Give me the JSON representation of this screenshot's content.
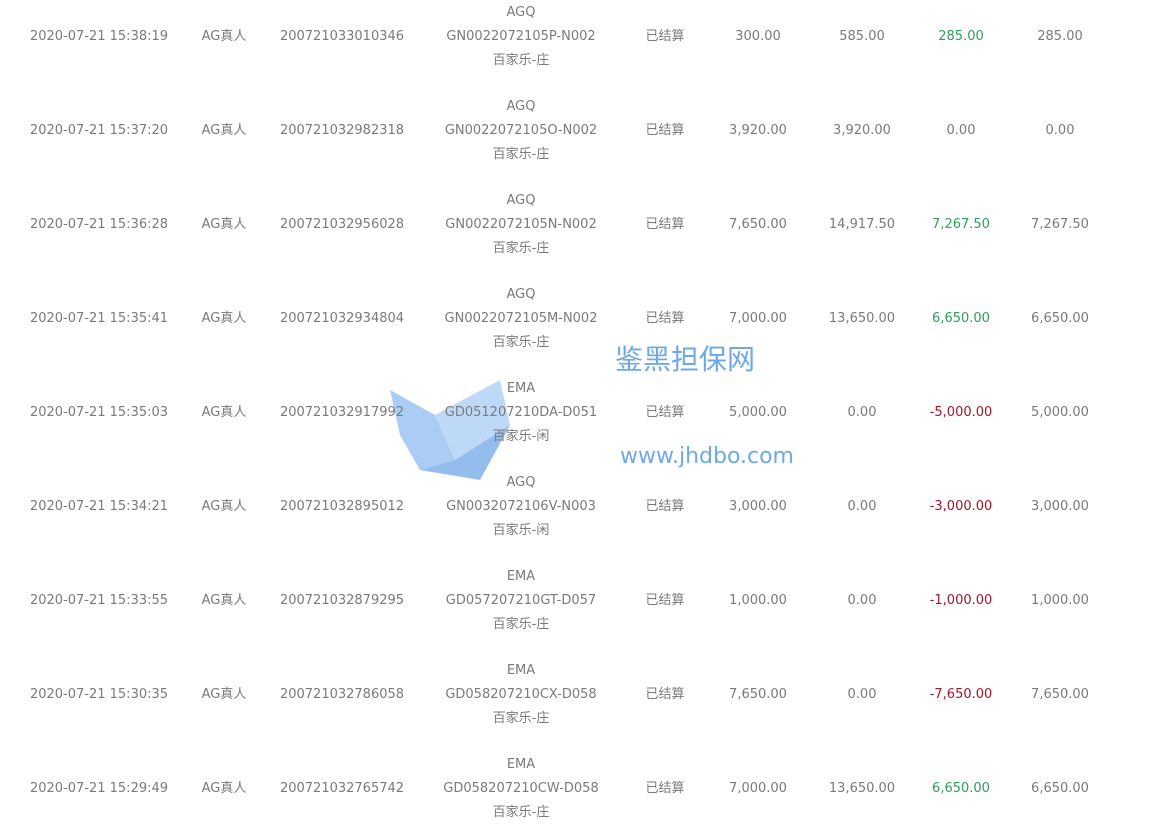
{
  "colors": {
    "positive": "#2e9e5b",
    "negative": "#a0162b",
    "text": "#7a7a7a",
    "watermark": "#6fa8e8"
  },
  "watermark": {
    "title": "鉴黑担保网",
    "url": "www.jhdbo.com"
  },
  "rows": [
    {
      "time": "2020-07-21 15:38:19",
      "platform": "AG真人",
      "order_id": "200721033010346",
      "game_provider": "AGQ",
      "game_round": "GN0022072105P-N002",
      "bet_type": "百家乐-庄",
      "status": "已结算",
      "bet": "300.00",
      "valid_bet": "585.00",
      "win_loss": "285.00",
      "win_sign": "pos",
      "payout": "285.00"
    },
    {
      "time": "2020-07-21 15:37:20",
      "platform": "AG真人",
      "order_id": "200721032982318",
      "game_provider": "AGQ",
      "game_round": "GN0022072105O-N002",
      "bet_type": "百家乐-庄",
      "status": "已结算",
      "bet": "3,920.00",
      "valid_bet": "3,920.00",
      "win_loss": "0.00",
      "win_sign": "zero",
      "payout": "0.00"
    },
    {
      "time": "2020-07-21 15:36:28",
      "platform": "AG真人",
      "order_id": "200721032956028",
      "game_provider": "AGQ",
      "game_round": "GN0022072105N-N002",
      "bet_type": "百家乐-庄",
      "status": "已结算",
      "bet": "7,650.00",
      "valid_bet": "14,917.50",
      "win_loss": "7,267.50",
      "win_sign": "pos",
      "payout": "7,267.50"
    },
    {
      "time": "2020-07-21 15:35:41",
      "platform": "AG真人",
      "order_id": "200721032934804",
      "game_provider": "AGQ",
      "game_round": "GN0022072105M-N002",
      "bet_type": "百家乐-庄",
      "status": "已结算",
      "bet": "7,000.00",
      "valid_bet": "13,650.00",
      "win_loss": "6,650.00",
      "win_sign": "pos",
      "payout": "6,650.00"
    },
    {
      "time": "2020-07-21 15:35:03",
      "platform": "AG真人",
      "order_id": "200721032917992",
      "game_provider": "EMA",
      "game_round": "GD051207210DA-D051",
      "bet_type": "百家乐-闲",
      "status": "已结算",
      "bet": "5,000.00",
      "valid_bet": "0.00",
      "win_loss": "-5,000.00",
      "win_sign": "neg",
      "payout": "5,000.00"
    },
    {
      "time": "2020-07-21 15:34:21",
      "platform": "AG真人",
      "order_id": "200721032895012",
      "game_provider": "AGQ",
      "game_round": "GN0032072106V-N003",
      "bet_type": "百家乐-闲",
      "status": "已结算",
      "bet": "3,000.00",
      "valid_bet": "0.00",
      "win_loss": "-3,000.00",
      "win_sign": "neg",
      "payout": "3,000.00"
    },
    {
      "time": "2020-07-21 15:33:55",
      "platform": "AG真人",
      "order_id": "200721032879295",
      "game_provider": "EMA",
      "game_round": "GD057207210GT-D057",
      "bet_type": "百家乐-庄",
      "status": "已结算",
      "bet": "1,000.00",
      "valid_bet": "0.00",
      "win_loss": "-1,000.00",
      "win_sign": "neg",
      "payout": "1,000.00"
    },
    {
      "time": "2020-07-21 15:30:35",
      "platform": "AG真人",
      "order_id": "200721032786058",
      "game_provider": "EMA",
      "game_round": "GD058207210CX-D058",
      "bet_type": "百家乐-庄",
      "status": "已结算",
      "bet": "7,650.00",
      "valid_bet": "0.00",
      "win_loss": "-7,650.00",
      "win_sign": "neg",
      "payout": "7,650.00"
    },
    {
      "time": "2020-07-21 15:29:49",
      "platform": "AG真人",
      "order_id": "200721032765742",
      "game_provider": "EMA",
      "game_round": "GD058207210CW-D058",
      "bet_type": "百家乐-庄",
      "status": "已结算",
      "bet": "7,000.00",
      "valid_bet": "13,650.00",
      "win_loss": "6,650.00",
      "win_sign": "pos",
      "payout": "6,650.00"
    }
  ]
}
